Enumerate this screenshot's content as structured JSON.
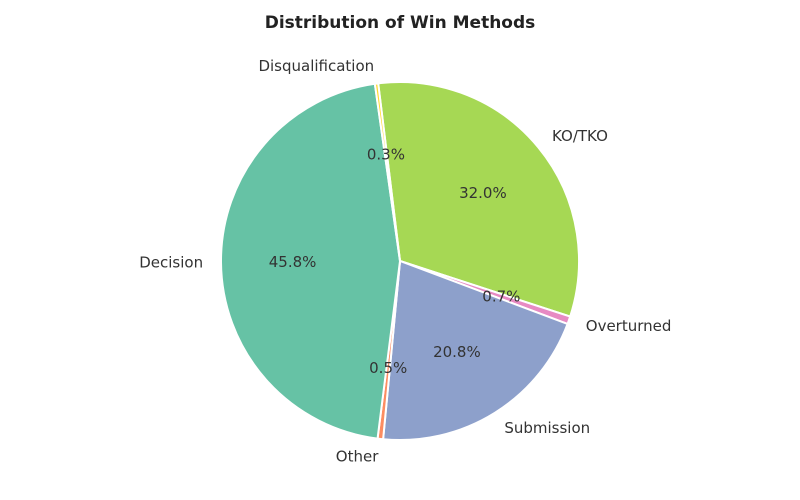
{
  "chart_data": {
    "type": "pie",
    "title": "Distribution of Win Methods",
    "start_angle_deg": 97,
    "direction": "clockwise",
    "slices": [
      {
        "label": "KO/TKO",
        "value": 32.0,
        "pct_text": "32.0%",
        "color": "#a6d854"
      },
      {
        "label": "Overturned",
        "value": 0.7,
        "pct_text": "0.7%",
        "color": "#e78ac3"
      },
      {
        "label": "Submission",
        "value": 20.8,
        "pct_text": "20.8%",
        "color": "#8da0cb"
      },
      {
        "label": "Other",
        "value": 0.5,
        "pct_text": "0.5%",
        "color": "#fc8d62"
      },
      {
        "label": "Decision",
        "value": 45.8,
        "pct_text": "45.8%",
        "color": "#66c2a5"
      },
      {
        "label": "Disqualification",
        "value": 0.3,
        "pct_text": "0.3%",
        "color": "#ffd92f"
      }
    ]
  }
}
